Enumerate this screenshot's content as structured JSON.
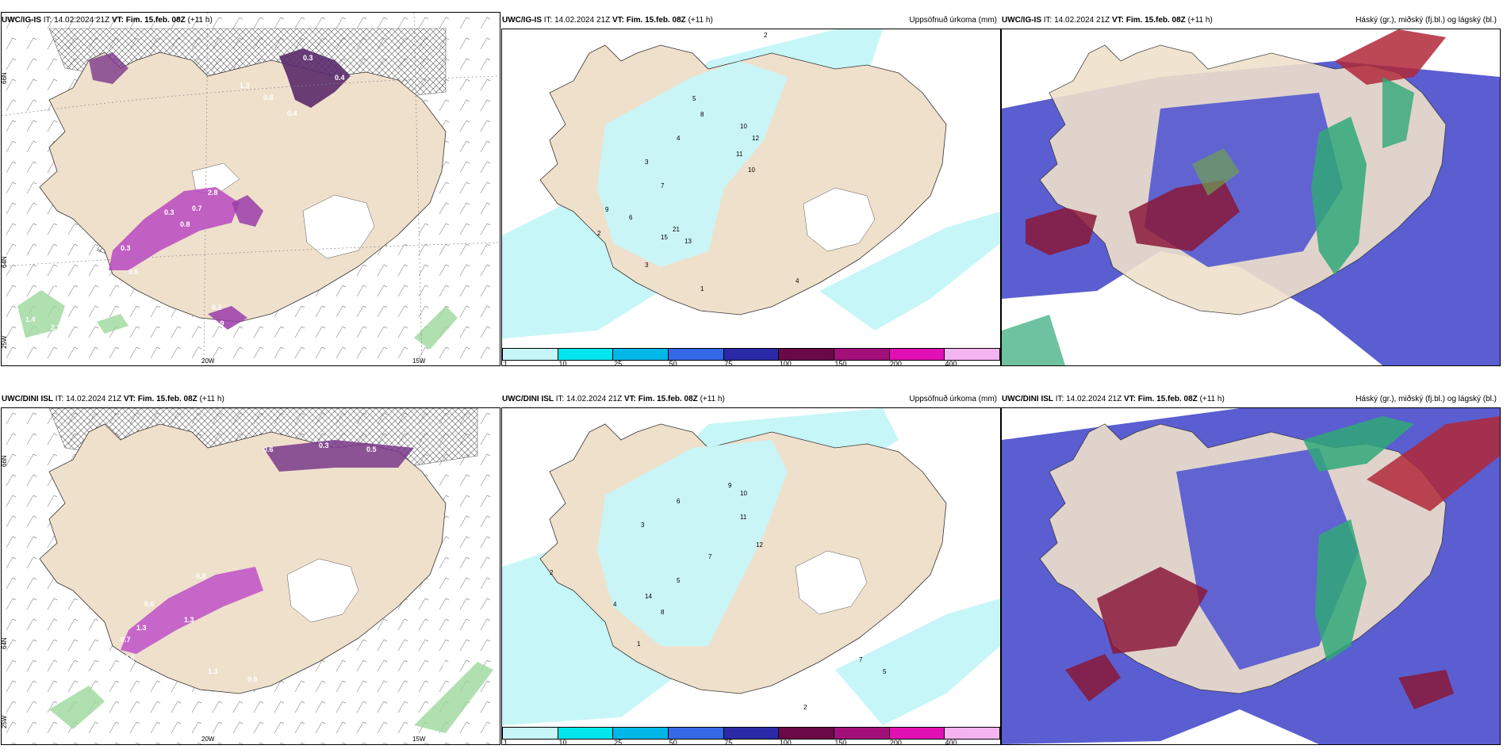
{
  "top_row": {
    "model": "UWC/IG-IS",
    "it": "IT: 14.02.2024 21Z",
    "vt_label": "VT:",
    "vt_value": "Fim. 15.feb. 08Z",
    "lead": "(+11 h)"
  },
  "bottom_row": {
    "model": "UWC/DINI ISL",
    "it": "IT: 14.02.2024 21Z",
    "vt_label": "VT:",
    "vt_value": "Fim. 15.feb. 08Z",
    "lead": "(+11 h)"
  },
  "precip_title": "Uppsöfnuð úrkoma (mm)",
  "cloud_title": "Háský (gr.), miðský (fj.bl.) og lágský (bl.)",
  "legend_ticks": [
    "1",
    "10",
    "25",
    "50",
    "75",
    "100",
    "150",
    "200",
    "400"
  ],
  "legend_colors": [
    "#c6f6f8",
    "#00e5ee",
    "#00b7e8",
    "#3468e6",
    "#2a2aa8",
    "#6a0848",
    "#a4107a",
    "#e010b4",
    "#f4b4f0"
  ],
  "axis_labels": {
    "lat66": "66N",
    "lat64": "64N",
    "lat63": "63N",
    "lon20": "20W",
    "lon15": "15W",
    "lon25": "25W"
  },
  "top_left_values": [
    "0.3",
    "1.3",
    "0.4",
    "0.8",
    "0.4",
    "2.8",
    "0.3",
    "0.8",
    "0.3",
    "0.7",
    "0.6",
    "0.8",
    "1.4",
    "2.2",
    "1.1",
    "0.8",
    "0.2",
    "0.9"
  ],
  "bottom_left_values": [
    "0.6",
    "0.3",
    "0.5",
    "0.8",
    "0.6",
    "1.3",
    "1.3",
    "0.7",
    "0.8",
    "1.5",
    "1.1",
    "1.3",
    "0.9",
    "0.6",
    "2.8",
    "1.1",
    "1.3"
  ],
  "top_precip_values": [
    "2",
    "5",
    "8",
    "10",
    "12",
    "11",
    "10",
    "4",
    "3",
    "7",
    "9",
    "6",
    "21",
    "15",
    "13",
    "3",
    "2",
    "1",
    "4"
  ],
  "bottom_precip_values": [
    "2",
    "3",
    "6",
    "9",
    "10",
    "11",
    "12",
    "7",
    "5",
    "14",
    "8",
    "4",
    "1",
    "7",
    "5",
    "2"
  ]
}
